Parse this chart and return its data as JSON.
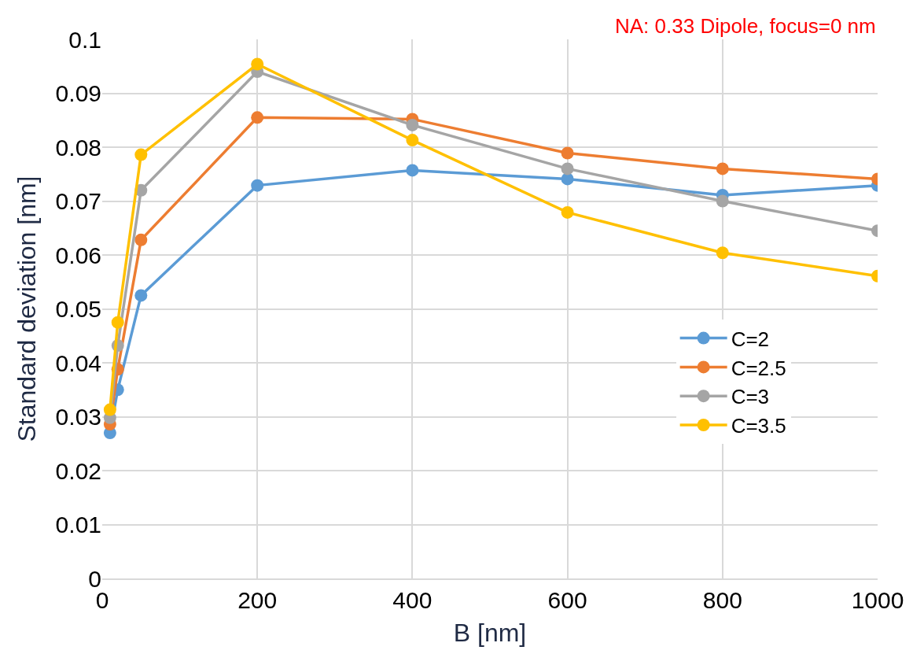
{
  "chart_data": {
    "type": "line",
    "xlabel": "B [nm]",
    "ylabel": "Standard deviation [nm]",
    "annotations": [
      "NA: 0.33 Dipole, focus=0 nm"
    ],
    "x": [
      10,
      20,
      50,
      200,
      400,
      600,
      800,
      1000
    ],
    "series": [
      {
        "name": "C=2",
        "color": "#5b9bd5",
        "values": [
          0.027,
          0.035,
          0.0525,
          0.0729,
          0.0757,
          0.0741,
          0.0711,
          0.0729
        ]
      },
      {
        "name": "C=2.5",
        "color": "#ed7d31",
        "values": [
          0.0286,
          0.0388,
          0.0628,
          0.0855,
          0.0852,
          0.0789,
          0.076,
          0.0741
        ]
      },
      {
        "name": "C=3",
        "color": "#a5a5a5",
        "values": [
          0.0298,
          0.0432,
          0.072,
          0.094,
          0.0841,
          0.076,
          0.07,
          0.0645
        ]
      },
      {
        "name": "C=3.5",
        "color": "#ffc000",
        "values": [
          0.0313,
          0.0475,
          0.0786,
          0.0954,
          0.0813,
          0.0679,
          0.0604,
          0.0561
        ]
      }
    ],
    "xlim": [
      0,
      1000
    ],
    "xticks": [
      0,
      200,
      400,
      600,
      800,
      1000
    ],
    "ylim": [
      0,
      0.1
    ],
    "yticks": [
      0,
      0.01,
      0.02,
      0.03,
      0.04,
      0.05,
      0.06,
      0.07,
      0.08,
      0.09,
      0.1
    ],
    "grid": true,
    "legend": "right",
    "marker": "circle",
    "line_style": "solid"
  }
}
